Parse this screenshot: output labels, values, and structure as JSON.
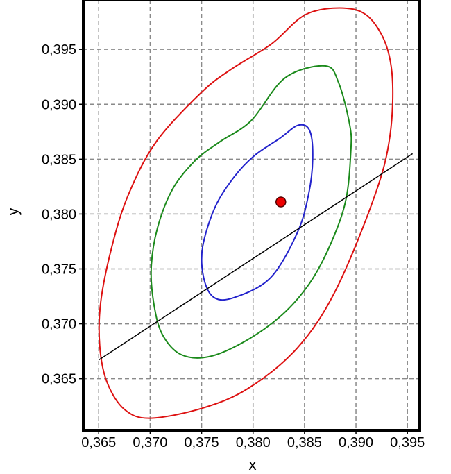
{
  "chart_data": {
    "type": "scatter",
    "title": "",
    "xlabel": "x",
    "ylabel": "y",
    "xlim": [
      0.3635,
      0.3962
    ],
    "ylim": [
      0.3603,
      0.3995
    ],
    "grid": true,
    "grid_style": "dashed",
    "legend": "none",
    "x_ticks": [
      {
        "value": 0.365,
        "label": "0,365"
      },
      {
        "value": 0.37,
        "label": "0,370"
      },
      {
        "value": 0.375,
        "label": "0,375"
      },
      {
        "value": 0.38,
        "label": "0,380"
      },
      {
        "value": 0.385,
        "label": "0,385"
      },
      {
        "value": 0.39,
        "label": "0,390"
      },
      {
        "value": 0.395,
        "label": "0,395"
      }
    ],
    "y_ticks": [
      {
        "value": 0.365,
        "label": "0,365"
      },
      {
        "value": 0.37,
        "label": "0,370"
      },
      {
        "value": 0.375,
        "label": "0,375"
      },
      {
        "value": 0.38,
        "label": "0,380"
      },
      {
        "value": 0.385,
        "label": "0,385"
      },
      {
        "value": 0.39,
        "label": "0,390"
      },
      {
        "value": 0.395,
        "label": "0,395"
      }
    ],
    "center_point": {
      "x": 0.3827,
      "y": 0.3811,
      "color": "#ee0000"
    },
    "ellipses": [
      {
        "color": "#2222cc",
        "points": [
          [
            0.3826,
            0.3869
          ],
          [
            0.3844,
            0.3881
          ],
          [
            0.3855,
            0.3876
          ],
          [
            0.3858,
            0.3851
          ],
          [
            0.3854,
            0.3818
          ],
          [
            0.3843,
            0.3783
          ],
          [
            0.3817,
            0.3742
          ],
          [
            0.3782,
            0.3724
          ],
          [
            0.3762,
            0.3724
          ],
          [
            0.3752,
            0.3742
          ],
          [
            0.3751,
            0.377
          ],
          [
            0.3763,
            0.3806
          ],
          [
            0.3781,
            0.3833
          ],
          [
            0.3801,
            0.3853
          ]
        ]
      },
      {
        "color": "#1b8a1b",
        "points": [
          [
            0.3798,
            0.3885
          ],
          [
            0.3831,
            0.3924
          ],
          [
            0.387,
            0.3935
          ],
          [
            0.3883,
            0.392
          ],
          [
            0.3894,
            0.3881
          ],
          [
            0.3895,
            0.3857
          ],
          [
            0.389,
            0.3812
          ],
          [
            0.3875,
            0.3772
          ],
          [
            0.3855,
            0.3737
          ],
          [
            0.3828,
            0.3708
          ],
          [
            0.3792,
            0.3684
          ],
          [
            0.3757,
            0.367
          ],
          [
            0.373,
            0.3672
          ],
          [
            0.3712,
            0.369
          ],
          [
            0.3704,
            0.3716
          ],
          [
            0.3701,
            0.375
          ],
          [
            0.3707,
            0.3787
          ],
          [
            0.3722,
            0.3823
          ],
          [
            0.3744,
            0.3849
          ],
          [
            0.3768,
            0.3866
          ]
        ]
      },
      {
        "color": "#dd1111",
        "points": [
          [
            0.3818,
            0.3955
          ],
          [
            0.3854,
            0.3983
          ],
          [
            0.39,
            0.3986
          ],
          [
            0.3924,
            0.3965
          ],
          [
            0.3935,
            0.3928
          ],
          [
            0.3933,
            0.3871
          ],
          [
            0.3918,
            0.3816
          ],
          [
            0.388,
            0.373
          ],
          [
            0.3843,
            0.3678
          ],
          [
            0.3795,
            0.3641
          ],
          [
            0.375,
            0.3623
          ],
          [
            0.37,
            0.3614
          ],
          [
            0.3675,
            0.3622
          ],
          [
            0.3658,
            0.3647
          ],
          [
            0.3651,
            0.368
          ],
          [
            0.3652,
            0.372
          ],
          [
            0.3663,
            0.3771
          ],
          [
            0.3679,
            0.3818
          ],
          [
            0.3706,
            0.3866
          ],
          [
            0.375,
            0.3911
          ],
          [
            0.3779,
            0.3932
          ]
        ]
      }
    ],
    "line": {
      "color": "#000000",
      "from": [
        0.365,
        0.3667
      ],
      "to": [
        0.3955,
        0.3855
      ]
    }
  }
}
